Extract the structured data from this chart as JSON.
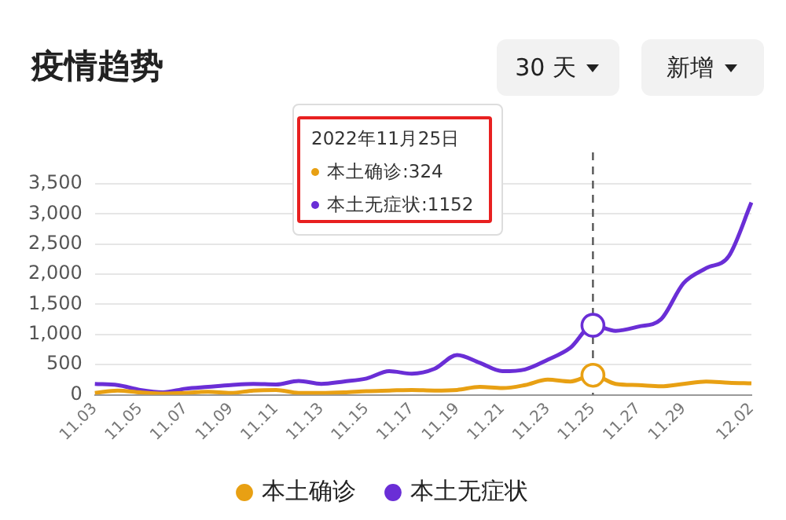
{
  "chart_data": {
    "type": "line",
    "title": "疫情趋势",
    "categories": [
      "11.03",
      null,
      "11.05",
      null,
      "11.07",
      null,
      "11.09",
      null,
      "11.11",
      null,
      "11.13",
      null,
      "11.15",
      null,
      "11.17",
      null,
      "11.19",
      null,
      "11.21",
      null,
      "11.23",
      null,
      "11.25",
      null,
      "11.27",
      null,
      "11.29",
      null,
      null,
      "12.02"
    ],
    "series": [
      {
        "name": "本土确诊",
        "color": "#e8a013",
        "values": [
          30,
          70,
          40,
          20,
          30,
          50,
          30,
          70,
          80,
          30,
          30,
          40,
          60,
          70,
          80,
          70,
          80,
          130,
          110,
          160,
          250,
          220,
          324,
          180,
          160,
          140,
          180,
          220,
          200,
          190
        ]
      },
      {
        "name": "本土无症状",
        "color": "#6a2ed6",
        "values": [
          180,
          160,
          80,
          40,
          100,
          130,
          160,
          180,
          170,
          230,
          180,
          220,
          270,
          390,
          350,
          430,
          660,
          530,
          390,
          420,
          580,
          780,
          1152,
          1060,
          1130,
          1250,
          1850,
          2100,
          2300,
          3190
        ]
      }
    ],
    "ylim": [
      0,
      3500
    ],
    "yticks": [
      0,
      500,
      {
        "value": 1000,
        "label": "1,000"
      },
      {
        "value": 1500,
        "label": "1,500"
      },
      {
        "value": 2000,
        "label": "2,000"
      },
      {
        "value": 2500,
        "label": "2,500"
      },
      {
        "value": 3000,
        "label": "3,000"
      },
      {
        "value": 3500,
        "label": "3,500"
      }
    ],
    "grid": "y",
    "legend": "bottom",
    "ref_lines": [
      {
        "axis": "x",
        "value": "11.25",
        "line_style": "dashed",
        "color": "#555555"
      }
    ],
    "annotations": [
      "2022年11月25日",
      "本土确诊:324",
      "本土无症状:1152",
      "30 天",
      "新增"
    ]
  }
}
